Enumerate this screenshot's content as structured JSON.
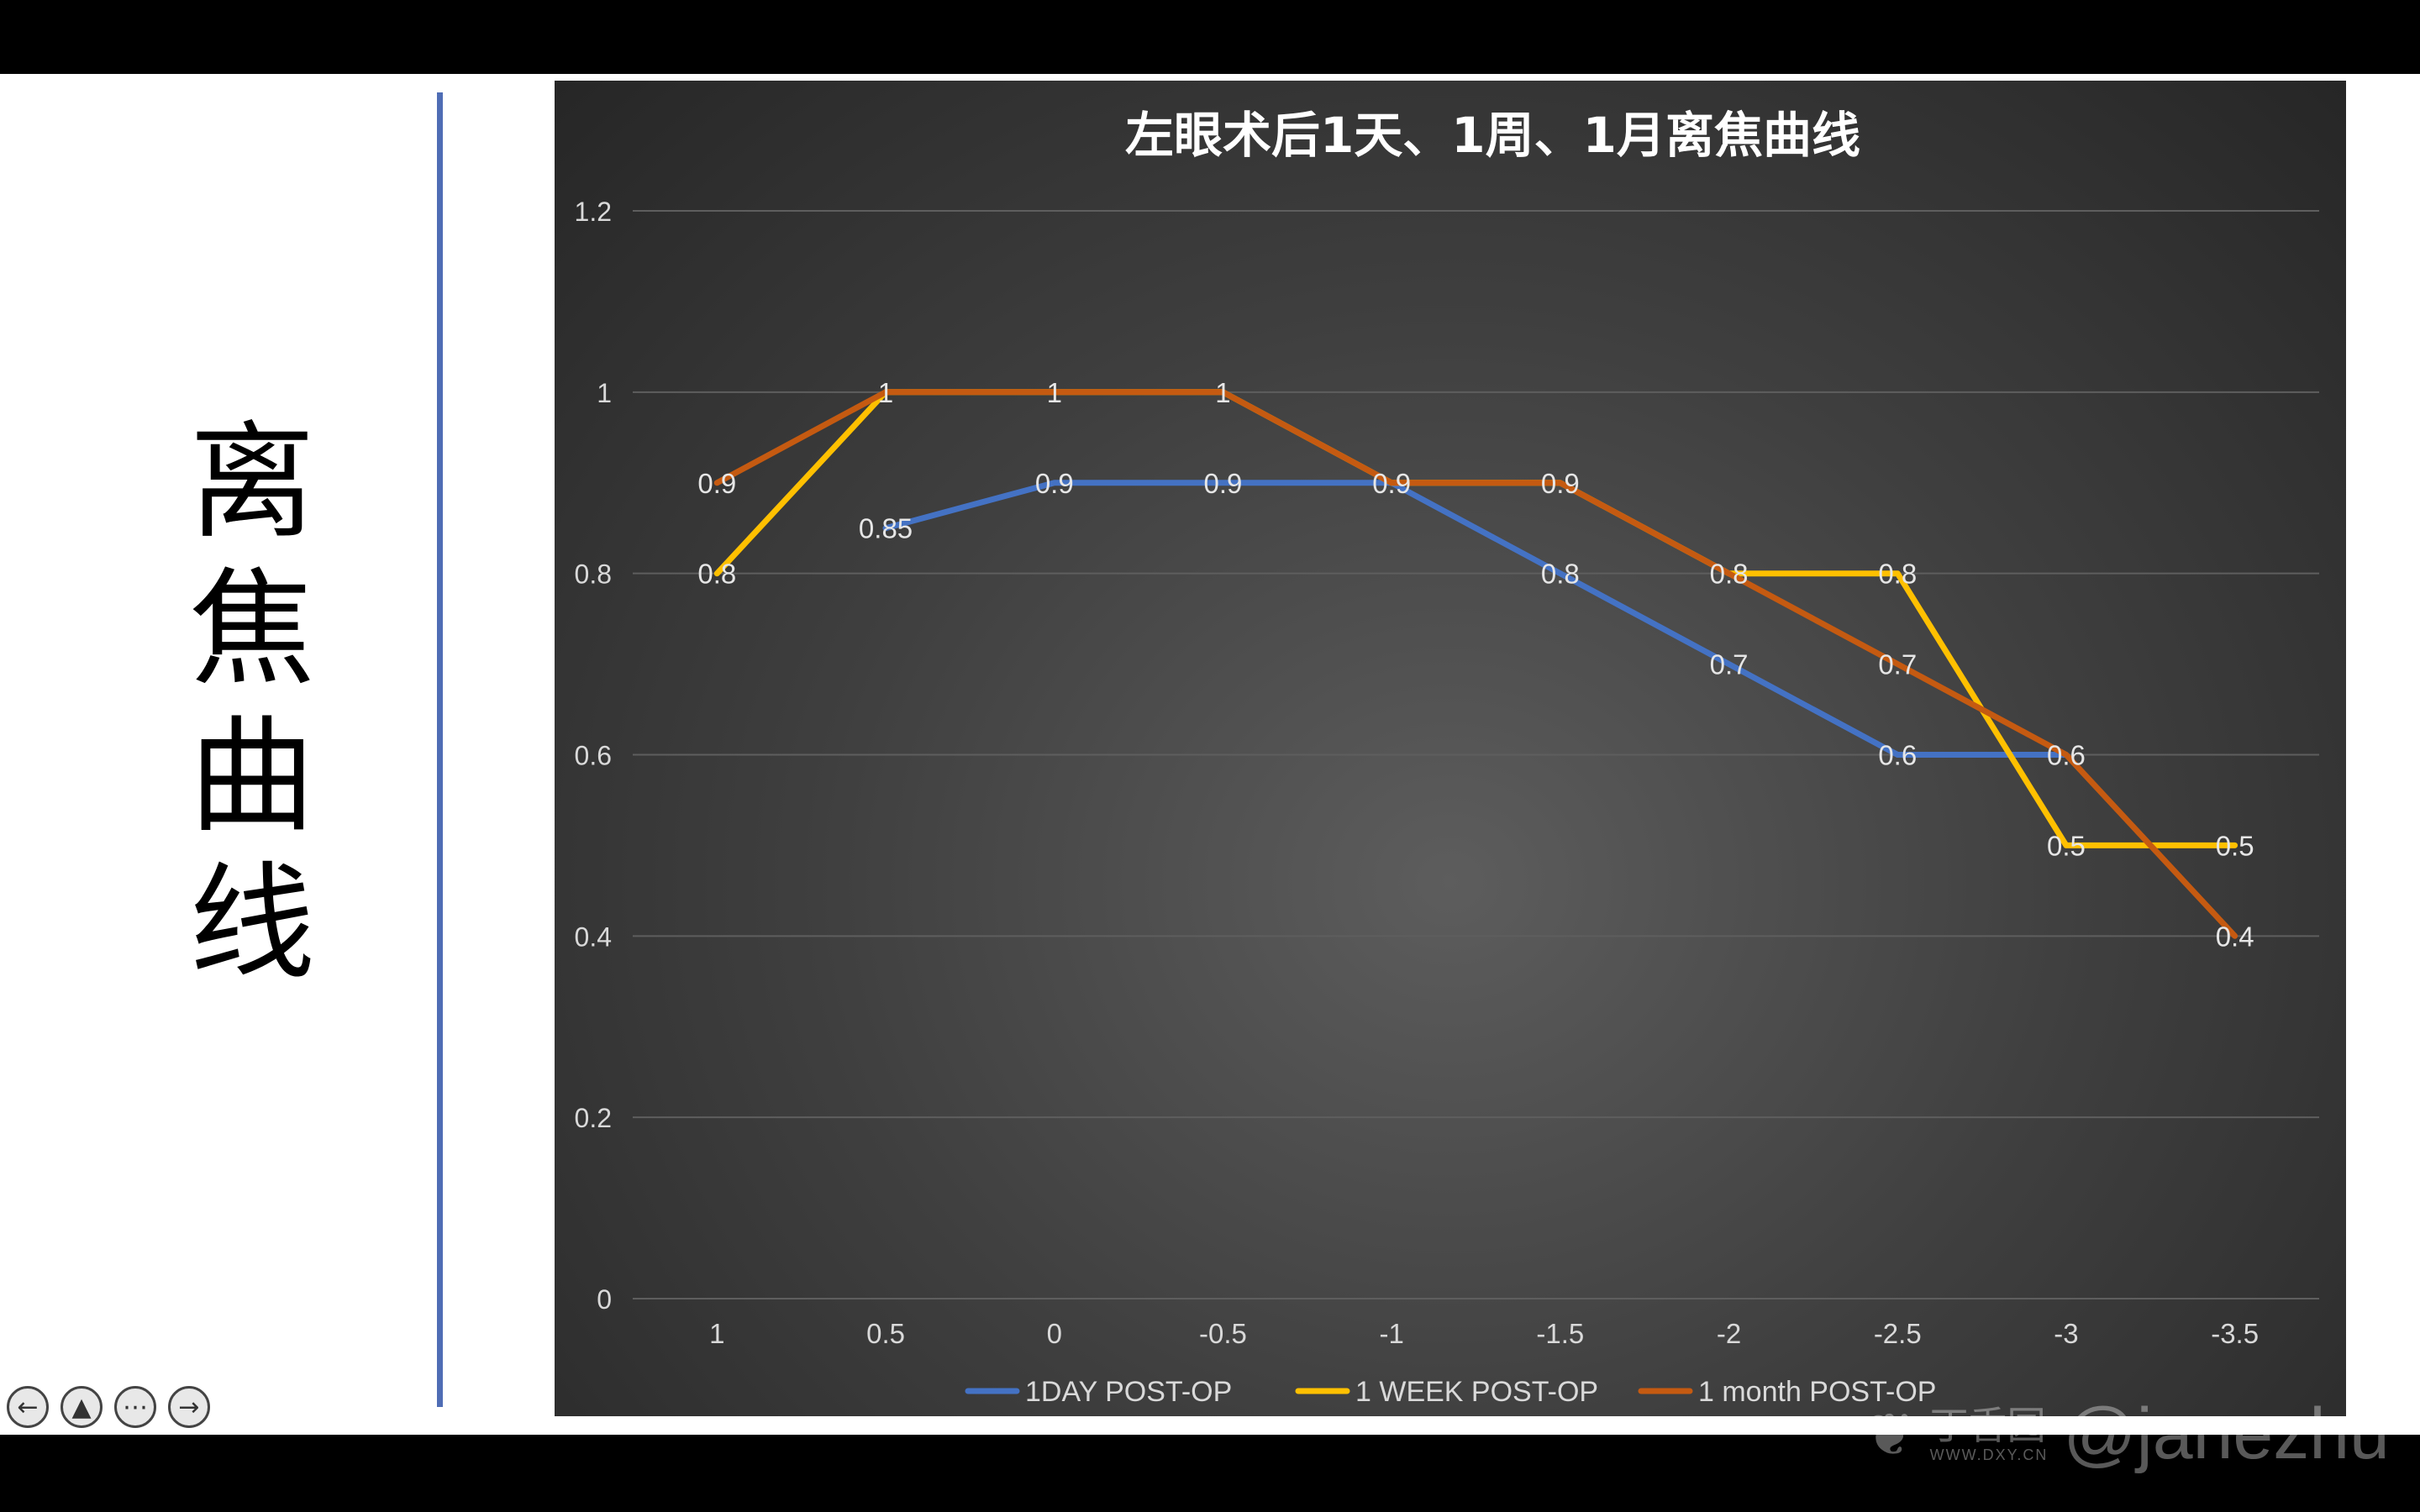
{
  "slide": {
    "side_title_chars": [
      "离",
      "焦",
      "曲",
      "线"
    ]
  },
  "chart_data": {
    "type": "line",
    "title": "左眼术后1天、1周、1月离焦曲线",
    "categories": [
      "1",
      "0.5",
      "0",
      "-0.5",
      "-1",
      "-1.5",
      "-2",
      "-2.5",
      "-3",
      "-3.5"
    ],
    "ylim": [
      0,
      1.2
    ],
    "yticks": [
      "0",
      "0.2",
      "0.4",
      "0.6",
      "0.8",
      "1",
      "1.2"
    ],
    "grid": true,
    "legend_position": "bottom",
    "series": [
      {
        "name": "1DAY POST-OP",
        "color": "#4472c4",
        "values": [
          null,
          0.85,
          0.9,
          0.9,
          0.9,
          0.8,
          0.7,
          0.6,
          0.6,
          null
        ]
      },
      {
        "name": "1 WEEK POST-OP",
        "color": "#ffc000",
        "values": [
          0.8,
          1,
          1,
          1,
          0.9,
          0.9,
          0.8,
          0.8,
          0.5,
          0.5
        ]
      },
      {
        "name": "1 month POST-OP",
        "color": "#c55a11",
        "values": [
          0.9,
          1,
          1,
          1,
          0.9,
          0.9,
          0.8,
          0.7,
          0.6,
          0.4
        ]
      }
    ],
    "data_labels": [
      {
        "category": "1",
        "value": 0.9,
        "text": "0.9"
      },
      {
        "category": "1",
        "value": 0.8,
        "text": "0.8"
      },
      {
        "category": "0.5",
        "value": 1,
        "text": "1"
      },
      {
        "category": "0.5",
        "value": 0.85,
        "text": "0.85"
      },
      {
        "category": "0",
        "value": 1,
        "text": "1"
      },
      {
        "category": "0",
        "value": 0.9,
        "text": "0.9"
      },
      {
        "category": "-0.5",
        "value": 1,
        "text": "1"
      },
      {
        "category": "-0.5",
        "value": 0.9,
        "text": "0.9"
      },
      {
        "category": "-1",
        "value": 0.9,
        "text": "0.9"
      },
      {
        "category": "-1.5",
        "value": 0.9,
        "text": "0.9"
      },
      {
        "category": "-1.5",
        "value": 0.8,
        "text": "0.8"
      },
      {
        "category": "-2",
        "value": 0.8,
        "text": "0.8"
      },
      {
        "category": "-2",
        "value": 0.7,
        "text": "0.7"
      },
      {
        "category": "-2.5",
        "value": 0.8,
        "text": "0.8"
      },
      {
        "category": "-2.5",
        "value": 0.7,
        "text": "0.7"
      },
      {
        "category": "-2.5",
        "value": 0.6,
        "text": "0.6"
      },
      {
        "category": "-3",
        "value": 0.6,
        "text": "0.6"
      },
      {
        "category": "-3",
        "value": 0.5,
        "text": "0.5"
      },
      {
        "category": "-3.5",
        "value": 0.5,
        "text": "0.5"
      },
      {
        "category": "-3.5",
        "value": 0.4,
        "text": "0.4"
      }
    ]
  },
  "nav": {
    "buttons": [
      {
        "name": "prev-slide-button",
        "icon": "arrow-left-icon",
        "glyph": "←"
      },
      {
        "name": "pen-tool-button",
        "icon": "pen-icon",
        "glyph": "▲"
      },
      {
        "name": "more-options-button",
        "icon": "more-icon",
        "glyph": "⋯"
      },
      {
        "name": "next-slide-button",
        "icon": "arrow-right-icon",
        "glyph": "→"
      }
    ]
  },
  "watermark": {
    "logo_icon": "leaf-logo-icon",
    "brand": "丁香园",
    "url": "WWW.DXY.CN",
    "handle": "@janezhu"
  }
}
